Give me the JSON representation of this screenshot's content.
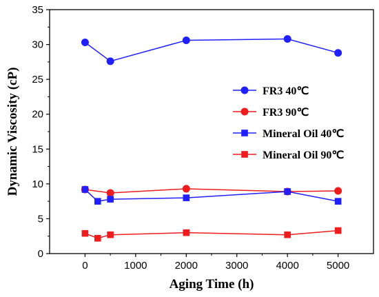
{
  "chart_data": {
    "type": "line",
    "xlabel": "Aging Time (h)",
    "ylabel": "Dynamic Viscosity (cP)",
    "xlim": [
      -700,
      5700
    ],
    "ylim": [
      0,
      35
    ],
    "xticks": [
      0,
      1000,
      2000,
      3000,
      4000,
      5000
    ],
    "yticks": [
      0,
      5,
      10,
      15,
      20,
      25,
      30,
      35
    ],
    "grid": false,
    "legend_position": "right-middle",
    "series": [
      {
        "name": "FR3 40℃",
        "marker": "circle",
        "color": "#1f1fff",
        "x": [
          0,
          500,
          2000,
          4000,
          5000
        ],
        "y": [
          30.3,
          27.6,
          30.6,
          30.8,
          28.8
        ]
      },
      {
        "name": "FR3 90℃",
        "marker": "circle",
        "color": "#ee1c1c",
        "x": [
          0,
          500,
          2000,
          4000,
          5000
        ],
        "y": [
          9.2,
          8.7,
          9.3,
          8.9,
          9.0
        ]
      },
      {
        "name": "Mineral Oil 40℃",
        "marker": "square",
        "color": "#1f1fff",
        "x": [
          0,
          250,
          500,
          2000,
          4000,
          5000
        ],
        "y": [
          9.2,
          7.5,
          7.8,
          8.0,
          8.9,
          7.5
        ]
      },
      {
        "name": "Mineral Oil 90℃",
        "marker": "square",
        "color": "#ee1c1c",
        "x": [
          0,
          250,
          500,
          2000,
          4000,
          5000
        ],
        "y": [
          2.9,
          2.2,
          2.7,
          3.0,
          2.7,
          3.3
        ]
      }
    ]
  }
}
